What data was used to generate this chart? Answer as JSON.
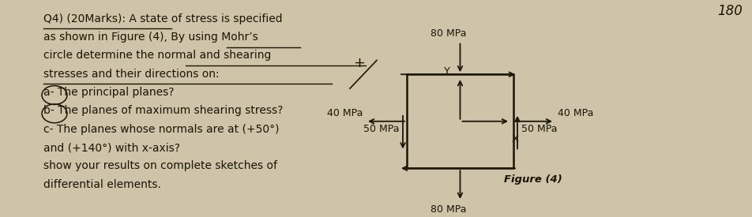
{
  "bg_color": "#cfc4aa",
  "text_color": "#1a1505",
  "question_lines": [
    "Q4) (20Marks): A state of stress is specified",
    "as shown in Figure (4), By using Mohr’s",
    "circle determine the normal and shearing",
    "stresses and their directions on:",
    "a- The principal planes?",
    "b- The planes of maximum shearing stress?",
    "c- The planes whose normals are at (+50°)",
    "and (+140°) with x-axis?",
    "show your results on complete sketches of",
    "differential elements."
  ],
  "figure_caption": "Figure (4)",
  "page_number": "180",
  "stress_top": "80 MPa",
  "stress_bottom": "80 MPa",
  "stress_left": "40 MPa",
  "stress_right": "40 MPa",
  "shear_left": "50 MPa",
  "shear_right": "50 MPa"
}
